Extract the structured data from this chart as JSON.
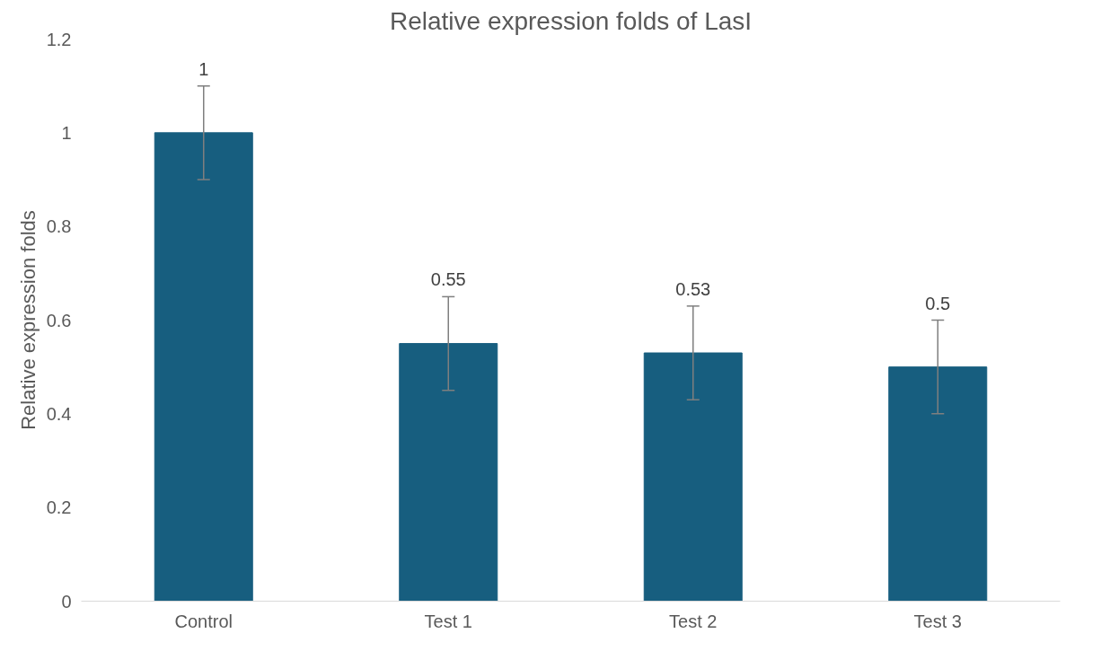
{
  "chart_data": {
    "type": "bar",
    "title": "Relative expression folds of LasI",
    "ylabel": "Relative expression folds",
    "categories": [
      "Control",
      "Test 1",
      "Test 2",
      "Test 3"
    ],
    "values": [
      1,
      0.55,
      0.53,
      0.5
    ],
    "errors": [
      0.1,
      0.1,
      0.1,
      0.1
    ],
    "color": "#175e7f",
    "data_labels": true,
    "ylim": [
      0,
      1.2
    ],
    "yticks": [
      0,
      0.2,
      0.4,
      0.6,
      0.8,
      1,
      1.2
    ],
    "grid": false
  }
}
